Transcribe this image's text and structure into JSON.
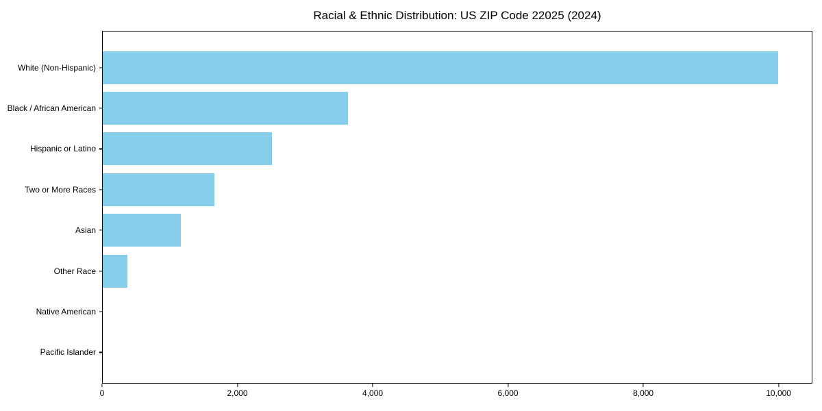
{
  "chart_data": {
    "type": "bar",
    "orientation": "horizontal",
    "title": "Racial & Ethnic Distribution: US ZIP Code 22025 (2024)",
    "categories": [
      "White (Non-Hispanic)",
      "Black / African American",
      "Hispanic or Latino",
      "Two or More Races",
      "Asian",
      "Other Race",
      "Native American",
      "Pacific Islander"
    ],
    "values": [
      10000,
      3630,
      2510,
      1650,
      1160,
      370,
      0,
      0
    ],
    "xlabel": "",
    "ylabel": "",
    "xlim": [
      0,
      10500
    ],
    "xticks": [
      0,
      2000,
      4000,
      6000,
      8000,
      10000
    ],
    "xtick_labels": [
      "0",
      "2,000",
      "4,000",
      "6,000",
      "8,000",
      "10,000"
    ],
    "bar_color": "#87CEEB",
    "grid": false,
    "legend": "none",
    "background_color": "#ffffff",
    "axis_color": "#000000"
  }
}
